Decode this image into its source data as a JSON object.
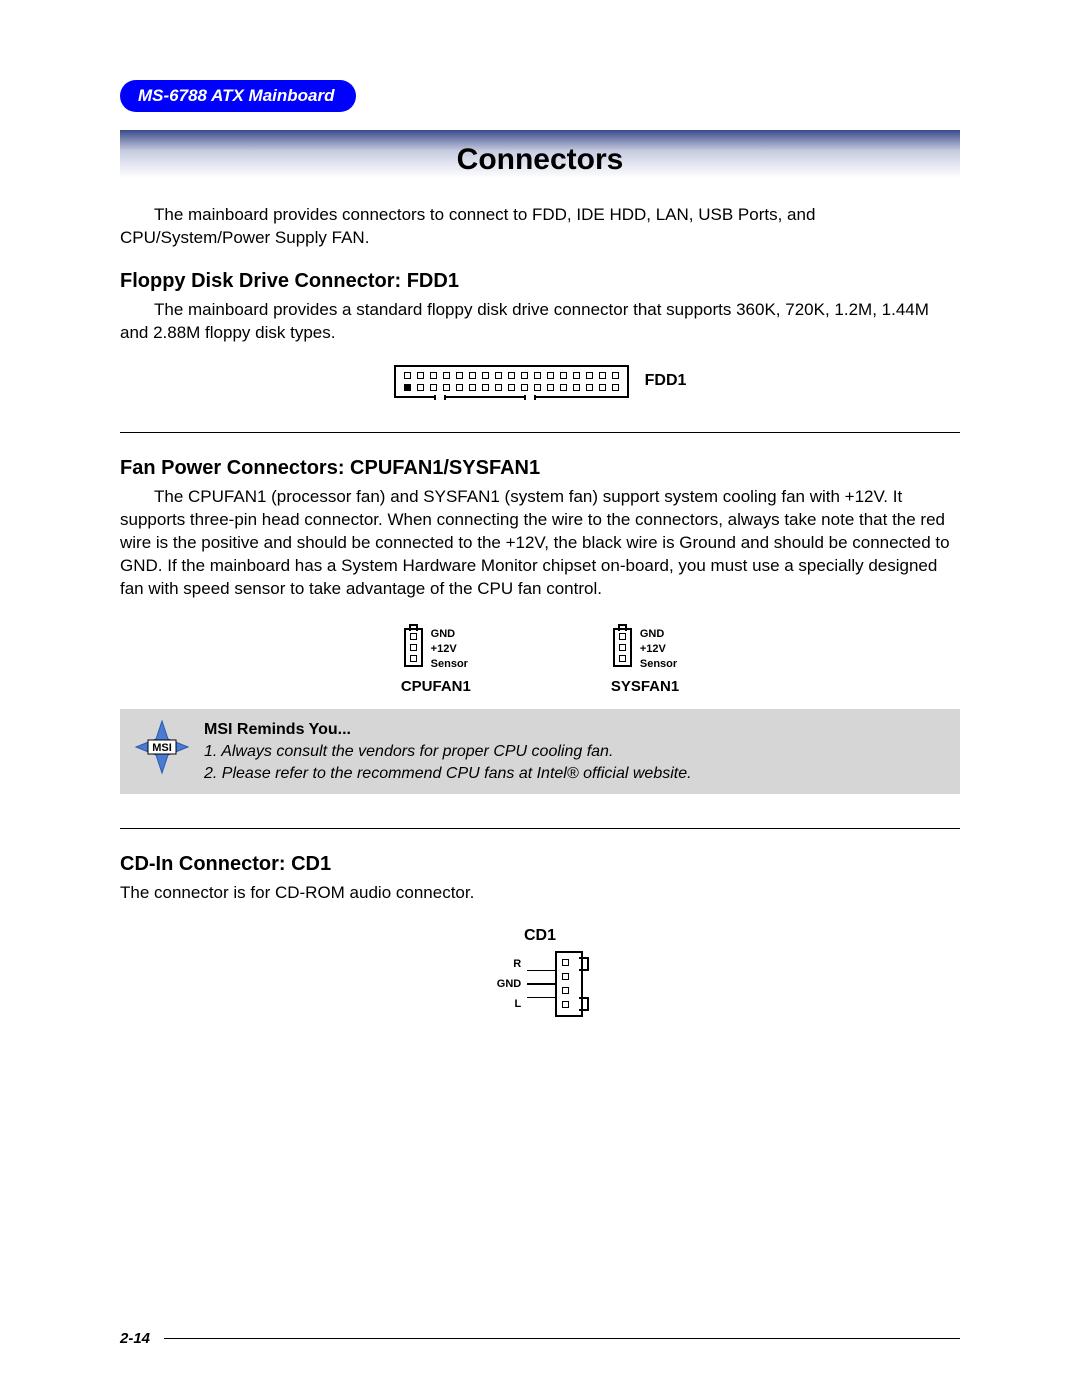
{
  "header": {
    "product": "MS-6788 ATX Mainboard"
  },
  "banner": {
    "title": "Connectors"
  },
  "intro": "The mainboard provides connectors to connect to FDD, IDE HDD, LAN, USB Ports, and CPU/System/Power Supply FAN.",
  "fdd": {
    "heading": "Floppy Disk Drive Connector: FDD1",
    "text": "The mainboard provides a standard floppy disk drive connector that supports 360K, 720K, 1.2M, 1.44M and 2.88M floppy disk types.",
    "label": "FDD1",
    "diagram": {
      "top_pins": 17,
      "bottom_pins": 17,
      "border_color": "#000000",
      "pin_color": "#000000"
    }
  },
  "fan": {
    "heading": "Fan Power Connectors: CPUFAN1/SYSFAN1",
    "text": "The CPUFAN1 (processor fan) and SYSFAN1 (system fan) support system cooling fan with +12V. It supports three-pin head connector. When connecting the wire to the connectors, always take note that the red wire is the positive and should be connected to the +12V, the black wire is Ground and should be connected to GND. If the mainboard has a System Hardware Monitor chipset on-board, you must use a specially designed fan with speed sensor to take advantage of the CPU fan control.",
    "connectors": [
      {
        "name": "CPUFAN1",
        "pins": [
          "GND",
          "+12V",
          "Sensor"
        ]
      },
      {
        "name": "SYSFAN1",
        "pins": [
          "GND",
          "+12V",
          "Sensor"
        ]
      }
    ]
  },
  "reminder": {
    "logo_text": "MSI",
    "star_color": "#4a7bd0",
    "title": "MSI Reminds You...",
    "notes": [
      "1. Always consult the vendors for proper CPU cooling fan.",
      "2. Please refer to the recommend CPU fans at Intel® official website."
    ]
  },
  "cd": {
    "heading": "CD-In Connector: CD1",
    "text": "The connector is for CD-ROM audio connector.",
    "label": "CD1",
    "pins": [
      "R",
      "GND",
      "L"
    ]
  },
  "footer": {
    "page": "2-14"
  },
  "colors": {
    "header_bg": "#0000ff",
    "banner_gradient_top": "#3a4a8a",
    "banner_gradient_mid": "#c8cce0",
    "reminder_bg": "#d6d6d6",
    "text": "#000000",
    "background": "#ffffff"
  }
}
